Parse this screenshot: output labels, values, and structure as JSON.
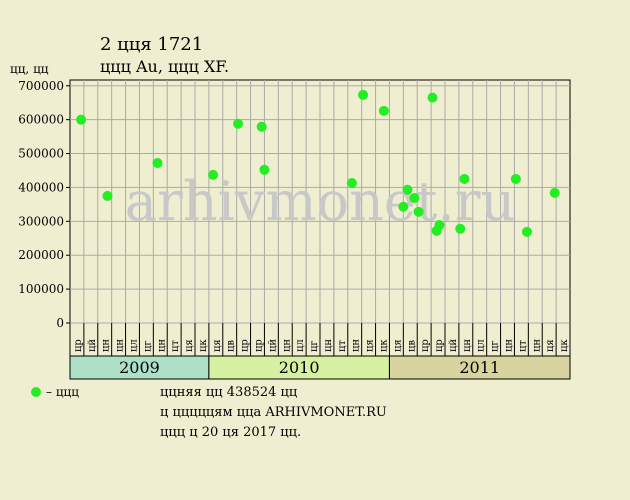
{
  "chart_data": {
    "type": "scatter",
    "title": "2 цця 1721",
    "subtitle": "ццц Au, ццц XF.",
    "y_label": "цц, цц",
    "watermark": "arhivmonet.ru",
    "months": [
      "цр",
      "цй",
      "цн",
      "цн",
      "цл",
      "цг",
      "цн",
      "цт",
      "ця",
      "цк",
      "ця",
      "цв",
      "цр",
      "цр",
      "цй",
      "цн",
      "цл",
      "цг",
      "цн",
      "цт",
      "цн",
      "ця",
      "цк",
      "ця",
      "цв",
      "цр",
      "цр",
      "цй",
      "цн",
      "цл",
      "цг",
      "цн",
      "цт",
      "цн",
      "ця",
      "цк"
    ],
    "years": [
      {
        "label": "2009",
        "start": 0,
        "end": 10,
        "color": "#aee0c8"
      },
      {
        "label": "2010",
        "start": 10,
        "end": 23,
        "color": "#d4f0a0"
      },
      {
        "label": "2011",
        "start": 23,
        "end": 36,
        "color": "#d8d4a0"
      }
    ],
    "xlim": [
      0,
      36
    ],
    "ylim": [
      0,
      717000
    ],
    "yticks": [
      0,
      100000,
      200000,
      300000,
      400000,
      500000,
      600000,
      700000
    ],
    "grid": true,
    "series": [
      {
        "name": "– ццц",
        "color": "#22ee22",
        "x": [
          0.8,
          2.7,
          6.3,
          10.3,
          12.1,
          13.8,
          14.0,
          20.3,
          21.1,
          22.6,
          24.0,
          24.3,
          24.8,
          25.1,
          26.1,
          26.4,
          26.6,
          28.1,
          28.4,
          32.1,
          32.9,
          34.9
        ],
        "values": [
          600000,
          375000,
          472000,
          437000,
          588000,
          579000,
          452000,
          413000,
          673000,
          626000,
          343000,
          393000,
          369000,
          328000,
          665000,
          272000,
          289000,
          278000,
          425000,
          425000,
          269000,
          384000
        ]
      }
    ],
    "notes": [
      "ццняя цц 438524 цц",
      "ц цццццям цца ARHIVMONET.RU",
      "ццц ц 20 ця 2017 цц."
    ]
  }
}
